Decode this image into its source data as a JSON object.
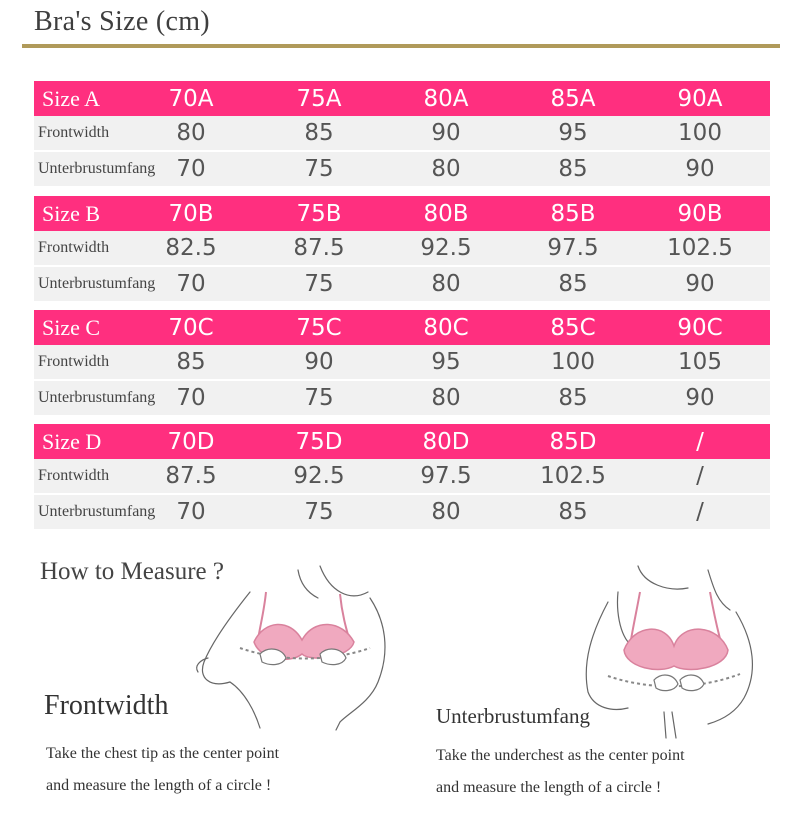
{
  "title": "Bra's Size (cm)",
  "groups": [
    {
      "label": "Size A",
      "sizes": [
        "70A",
        "75A",
        "80A",
        "85A",
        "90A"
      ],
      "frontwidth_label": "Frontwidth",
      "frontwidth": [
        "80",
        "85",
        "90",
        "95",
        "100"
      ],
      "under_label": "Unterbrustumfang",
      "under": [
        "70",
        "75",
        "80",
        "85",
        "90"
      ]
    },
    {
      "label": "Size B",
      "sizes": [
        "70B",
        "75B",
        "80B",
        "85B",
        "90B"
      ],
      "frontwidth_label": "Frontwidth",
      "frontwidth": [
        "82.5",
        "87.5",
        "92.5",
        "97.5",
        "102.5"
      ],
      "under_label": "Unterbrustumfang",
      "under": [
        "70",
        "75",
        "80",
        "85",
        "90"
      ]
    },
    {
      "label": "Size C",
      "sizes": [
        "70C",
        "75C",
        "80C",
        "85C",
        "90C"
      ],
      "frontwidth_label": "Frontwidth",
      "frontwidth": [
        "85",
        "90",
        "95",
        "100",
        "105"
      ],
      "under_label": "Unterbrustumfang",
      "under": [
        "70",
        "75",
        "80",
        "85",
        "90"
      ]
    },
    {
      "label": "Size D",
      "sizes": [
        "70D",
        "75D",
        "80D",
        "85D",
        "/"
      ],
      "frontwidth_label": "Frontwidth",
      "frontwidth": [
        "87.5",
        "92.5",
        "97.5",
        "102.5",
        "/"
      ],
      "under_label": "Unterbrustumfang",
      "under": [
        "70",
        "75",
        "80",
        "85",
        "/"
      ]
    }
  ],
  "measure": {
    "heading": "How to Measure ?",
    "left": {
      "title": "Frontwidth",
      "line1": "Take the chest tip as the center point",
      "line2": "and measure the length of a circle !"
    },
    "right": {
      "title": "Unterbrustumfang",
      "line1": "Take the underchest as the center point",
      "line2": "and measure the length of a circle !"
    }
  },
  "colors": {
    "header_pink": "#ff2f7f",
    "row_gray": "#f1f1f1",
    "rule_gold": "#b09a5a",
    "bra_pink": "#f0a9bf"
  }
}
